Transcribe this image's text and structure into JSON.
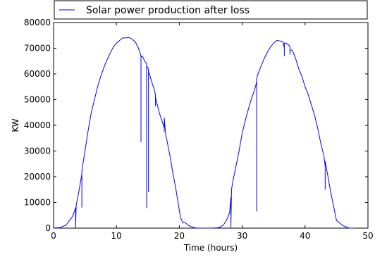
{
  "chart_data": {
    "type": "line",
    "xlabel": "Time (hours)",
    "ylabel": "KW",
    "xlim": [
      0,
      50
    ],
    "ylim": [
      0,
      80000
    ],
    "x_ticks": [
      0,
      10,
      20,
      30,
      40,
      50
    ],
    "y_ticks": [
      0,
      10000,
      20000,
      30000,
      40000,
      50000,
      60000,
      70000,
      80000
    ],
    "grid": false,
    "legend_position": "top",
    "series": [
      {
        "name": "Solar power production after loss",
        "color": "#0000ff",
        "x": [
          0,
          1,
          2,
          3,
          3.4,
          3.5,
          3.5,
          3.6,
          4,
          4.5,
          4.5,
          4.5,
          4.6,
          5,
          5.5,
          6,
          6.5,
          7,
          7.5,
          8,
          8.5,
          9,
          9.5,
          10,
          10.5,
          11,
          11.5,
          12,
          12.5,
          13,
          13.5,
          13.9,
          13.9,
          13.9,
          14.1,
          14.5,
          14.8,
          14.8,
          14.8,
          15,
          15.1,
          15.1,
          15.1,
          15.3,
          15.6,
          16,
          16.2,
          16.2,
          16.2,
          16.4,
          16.8,
          17.2,
          17.6,
          17.6,
          17.6,
          17.8,
          18.2,
          18.6,
          19,
          19.4,
          19.8,
          20.2,
          20.6,
          20.8,
          21,
          21.5,
          22,
          22.5,
          23,
          24,
          25,
          26,
          26.5,
          27,
          27.5,
          28,
          28.2,
          28.2,
          28.3,
          28.5,
          29,
          29.5,
          30,
          30.5,
          31,
          31.5,
          32,
          32.3,
          32.3,
          32.3,
          32.5,
          33,
          33.5,
          34,
          34.5,
          35,
          35.5,
          36,
          36.5,
          36.7,
          36.7,
          36.7,
          37,
          37.5,
          37.6,
          37.6,
          37.6,
          38,
          38.5,
          39,
          39.5,
          40,
          40.5,
          41,
          41.5,
          42,
          42.5,
          43,
          43.2,
          43.2,
          43.2,
          43.5,
          44,
          44.5,
          45,
          46,
          47,
          48
        ],
        "y": [
          0,
          200,
          1200,
          4500,
          7000,
          8000,
          0,
          9000,
          14000,
          21000,
          8000,
          22000,
          24000,
          30000,
          38000,
          45000,
          50000,
          55000,
          59000,
          62500,
          65500,
          68000,
          70500,
          72000,
          73000,
          74000,
          74000,
          74200,
          73500,
          72500,
          70000,
          67000,
          33500,
          66500,
          67000,
          65000,
          64000,
          7800,
          63000,
          62500,
          61500,
          14000,
          61000,
          59500,
          57000,
          54000,
          52000,
          47500,
          51000,
          49000,
          45000,
          42000,
          39000,
          37500,
          43000,
          37000,
          32000,
          27000,
          21000,
          16000,
          10000,
          4000,
          2000,
          2200,
          2000,
          1000,
          500,
          100,
          0,
          0,
          0,
          100,
          400,
          1200,
          3000,
          6000,
          12000,
          0,
          15000,
          18000,
          24000,
          30000,
          37000,
          42000,
          46500,
          50500,
          54000,
          57000,
          6500,
          58000,
          60000,
          63000,
          66000,
          68500,
          70500,
          72000,
          73000,
          72800,
          72500,
          70000,
          67000,
          72000,
          72000,
          71000,
          70500,
          67500,
          69500,
          69000,
          66000,
          62000,
          59000,
          55000,
          52000,
          48000,
          44000,
          39000,
          33000,
          28000,
          24000,
          15000,
          26000,
          22000,
          15000,
          9000,
          3000,
          1000,
          0,
          0
        ]
      }
    ]
  }
}
